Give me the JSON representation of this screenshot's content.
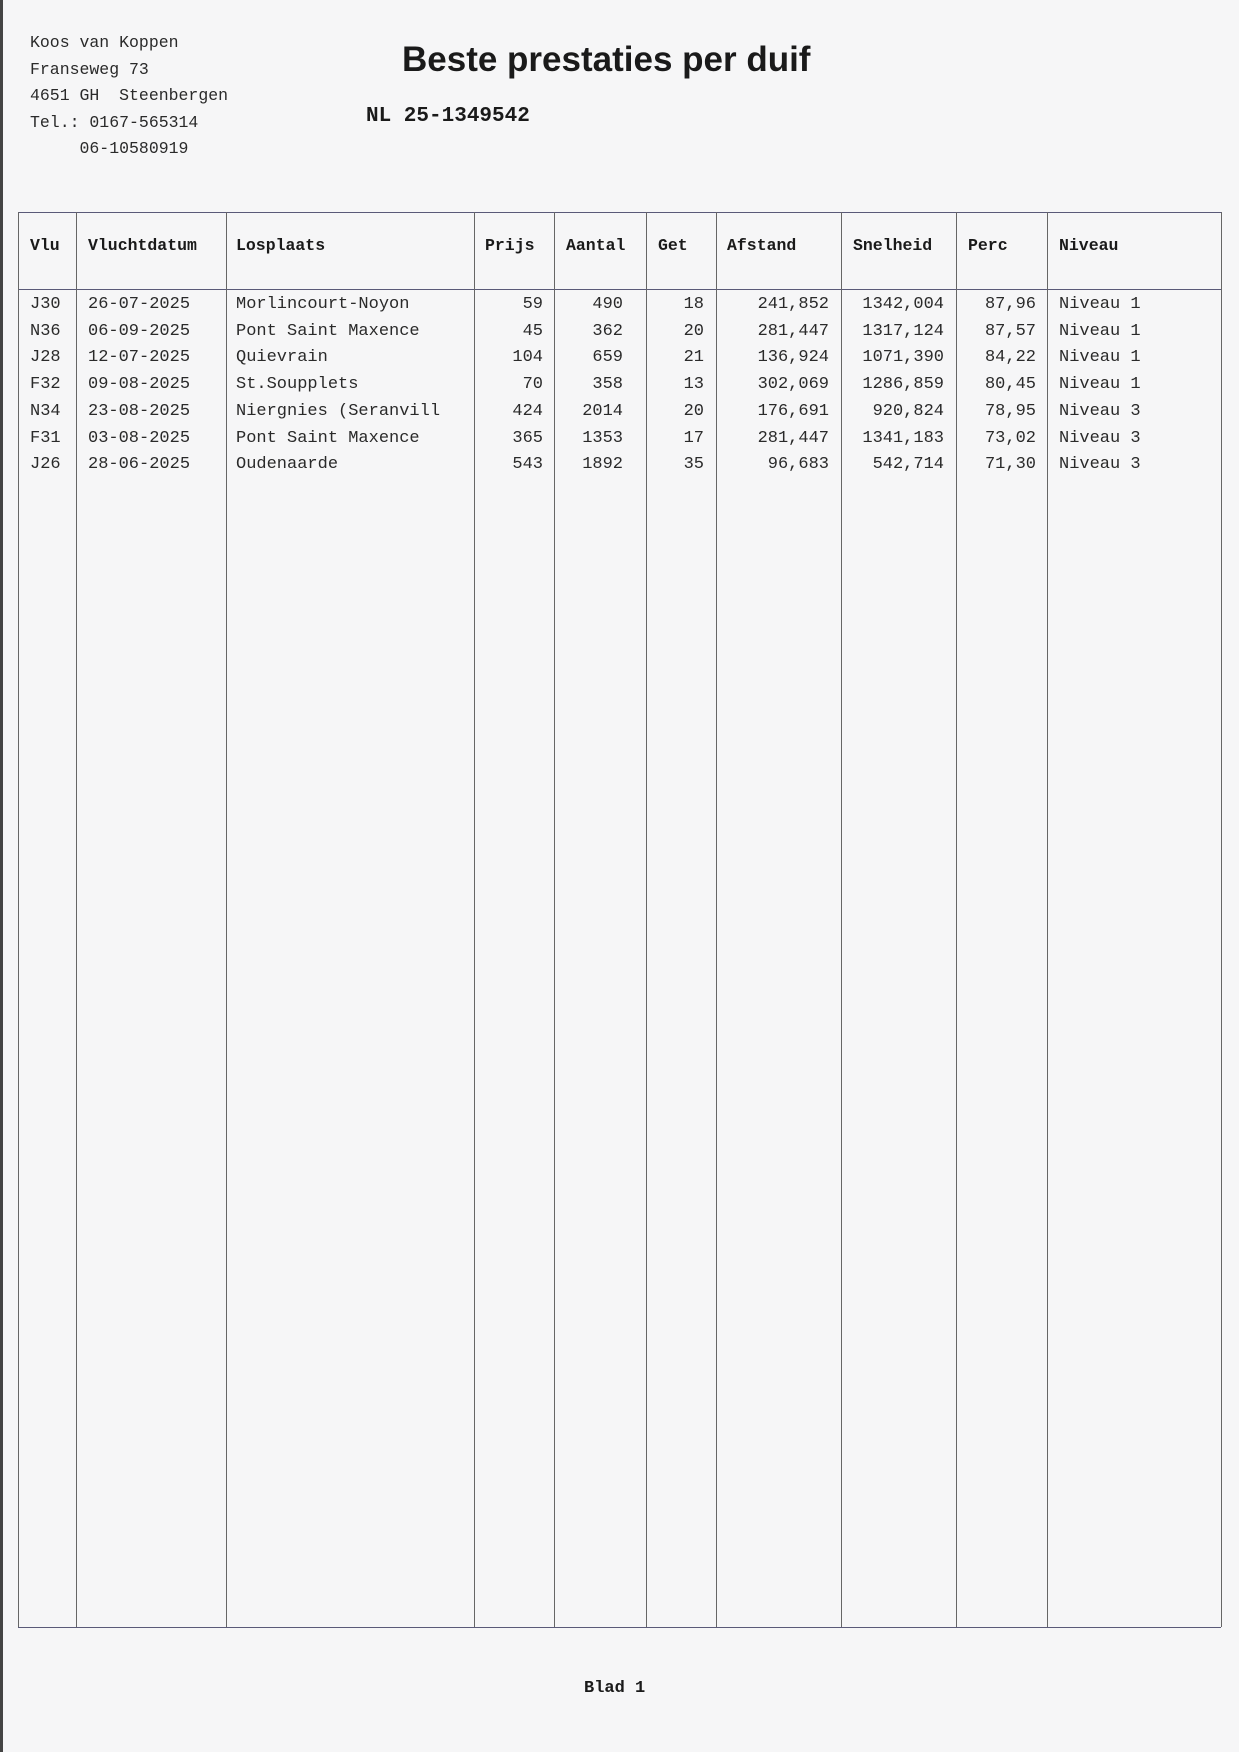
{
  "owner": {
    "name": "Koos van Koppen",
    "street": "Franseweg 73",
    "city": "4651 GH  Steenbergen",
    "phone": "Tel.: 0167-565314",
    "mobile": "     06-10580919"
  },
  "title": "Beste prestaties per duif",
  "ring_number": "NL 25-1349542",
  "table": {
    "headers": [
      "Vlu",
      "Vluchtdatum",
      "Losplaats",
      "Prijs",
      "Aantal",
      "Get",
      "Afstand",
      "Snelheid",
      "Perc",
      "Niveau"
    ],
    "rows": [
      [
        "J30",
        "26-07-2025",
        "Morlincourt-Noyon",
        "59",
        "490",
        "18",
        "241,852",
        "1342,004",
        "87,96",
        "Niveau 1"
      ],
      [
        "N36",
        "06-09-2025",
        "Pont Saint Maxence",
        "45",
        "362",
        "20",
        "281,447",
        "1317,124",
        "87,57",
        "Niveau 1"
      ],
      [
        "J28",
        "12-07-2025",
        "Quievrain",
        "104",
        "659",
        "21",
        "136,924",
        "1071,390",
        "84,22",
        "Niveau 1"
      ],
      [
        "F32",
        "09-08-2025",
        "St.Soupplets",
        "70",
        "358",
        "13",
        "302,069",
        "1286,859",
        "80,45",
        "Niveau 1"
      ],
      [
        "N34",
        "23-08-2025",
        "Niergnies (Seranvill",
        "424",
        "2014",
        "20",
        "176,691",
        "920,824",
        "78,95",
        "Niveau 3"
      ],
      [
        "F31",
        "03-08-2025",
        "Pont Saint Maxence",
        "365",
        "1353",
        "17",
        "281,447",
        "1341,183",
        "73,02",
        "Niveau 3"
      ],
      [
        "J26",
        "28-06-2025",
        "Oudenaarde",
        "543",
        "1892",
        "35",
        "96,683",
        "542,714",
        "71,30",
        "Niveau 3"
      ]
    ]
  },
  "footer": {
    "page": "Blad 1"
  }
}
